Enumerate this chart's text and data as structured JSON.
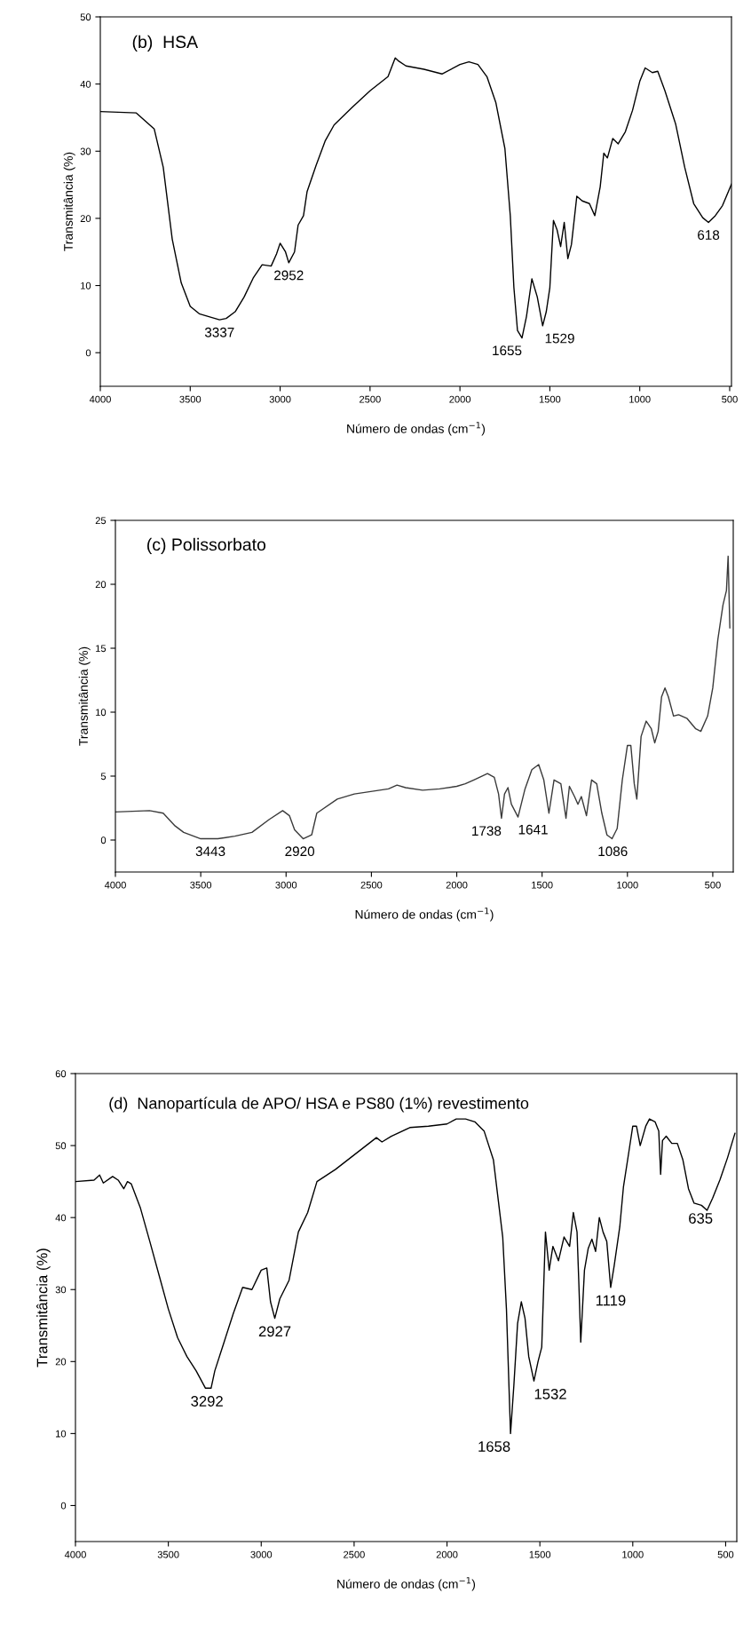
{
  "chart_data": [
    {
      "type": "line",
      "title": "(b)  HSA",
      "xlabel": "Número de ondas (cm$^{−1}$)",
      "ylabel": "Transmitância (%)",
      "xlim": [
        4000,
        490
      ],
      "ylim": [
        -5,
        50
      ],
      "xticks": [
        4000,
        3500,
        3000,
        2500,
        2000,
        1500,
        1000,
        500
      ],
      "yticks": [
        0,
        10,
        20,
        30,
        40,
        50
      ],
      "grid": false,
      "legend": false,
      "series": [
        {
          "color": "#000000",
          "x": [
            4000,
            3800,
            3700,
            3650,
            3600,
            3550,
            3500,
            3450,
            3400,
            3337,
            3300,
            3250,
            3200,
            3150,
            3100,
            3050,
            3020,
            3000,
            2970,
            2952,
            2920,
            2900,
            2870,
            2850,
            2800,
            2750,
            2700,
            2600,
            2500,
            2400,
            2360,
            2340,
            2300,
            2200,
            2100,
            2000,
            1950,
            1900,
            1850,
            1800,
            1750,
            1720,
            1700,
            1680,
            1655,
            1630,
            1600,
            1570,
            1540,
            1520,
            1500,
            1480,
            1460,
            1440,
            1420,
            1400,
            1380,
            1350,
            1320,
            1280,
            1250,
            1220,
            1200,
            1180,
            1150,
            1120,
            1080,
            1040,
            1000,
            970,
            930,
            900,
            860,
            800,
            750,
            700,
            650,
            618,
            580,
            540,
            490
          ],
          "values": [
            35.9,
            35.7,
            33.3,
            27.6,
            16.9,
            10.4,
            6.9,
            5.8,
            5.4,
            4.9,
            5.1,
            6.1,
            8.3,
            11.1,
            13.1,
            12.9,
            14.7,
            16.3,
            15.0,
            13.4,
            15.0,
            19.0,
            20.4,
            24.0,
            27.9,
            31.5,
            33.9,
            36.5,
            39.0,
            41.1,
            43.9,
            43.4,
            42.7,
            42.2,
            41.5,
            42.9,
            43.3,
            42.9,
            41.1,
            37.2,
            30.4,
            20.4,
            9.7,
            3.3,
            2.2,
            5.4,
            11.0,
            8.3,
            4.0,
            6.1,
            9.7,
            19.7,
            18.3,
            15.8,
            19.4,
            14.0,
            16.1,
            23.3,
            22.6,
            22.2,
            20.4,
            24.7,
            29.7,
            29.0,
            31.9,
            31.1,
            32.9,
            36.1,
            40.4,
            42.4,
            41.7,
            41.9,
            39.0,
            34.0,
            27.6,
            22.2,
            20.1,
            19.4,
            20.4,
            21.9,
            25.1
          ]
        }
      ],
      "annotations": [
        {
          "text": "3337",
          "x": 3337,
          "y": 4.9
        },
        {
          "text": "2952",
          "x": 2952,
          "y": 13.4
        },
        {
          "text": "1655",
          "x": 1655,
          "y": 2.2
        },
        {
          "text": "1529",
          "x": 1529,
          "y": 4.0
        },
        {
          "text": "618",
          "x": 618,
          "y": 19.4
        }
      ]
    },
    {
      "type": "line",
      "title": "(c) Polissorbato",
      "xlabel": "Número de ondas (cm$^{−1}$)",
      "ylabel": "Transmitância (%)",
      "xlim": [
        4000,
        380
      ],
      "ylim": [
        -2.5,
        25
      ],
      "xticks": [
        4000,
        3500,
        3000,
        2500,
        2000,
        1500,
        1000,
        500
      ],
      "yticks": [
        0,
        5,
        10,
        15,
        20,
        25
      ],
      "grid": false,
      "legend": false,
      "series": [
        {
          "color": "#3a3a3a",
          "x": [
            4000,
            3800,
            3720,
            3650,
            3600,
            3500,
            3400,
            3300,
            3200,
            3100,
            3020,
            2980,
            2950,
            2900,
            2850,
            2820,
            2700,
            2600,
            2400,
            2350,
            2300,
            2200,
            2100,
            2000,
            1950,
            1900,
            1820,
            1780,
            1755,
            1738,
            1720,
            1700,
            1680,
            1641,
            1600,
            1560,
            1520,
            1490,
            1460,
            1430,
            1390,
            1360,
            1340,
            1310,
            1290,
            1270,
            1240,
            1210,
            1180,
            1150,
            1120,
            1090,
            1060,
            1030,
            1000,
            980,
            960,
            945,
            920,
            890,
            860,
            840,
            820,
            800,
            780,
            760,
            730,
            700,
            650,
            600,
            570,
            530,
            500,
            470,
            440,
            420,
            410,
            400
          ],
          "values": [
            2.2,
            2.3,
            2.1,
            1.1,
            0.6,
            0.1,
            0.1,
            0.3,
            0.6,
            1.6,
            2.3,
            1.9,
            0.8,
            0.1,
            0.4,
            2.1,
            3.2,
            3.6,
            4.0,
            4.3,
            4.1,
            3.9,
            4.0,
            4.2,
            4.4,
            4.7,
            5.2,
            4.9,
            3.6,
            1.7,
            3.6,
            4.1,
            2.8,
            1.8,
            4.0,
            5.5,
            5.9,
            4.7,
            2.1,
            4.7,
            4.4,
            1.7,
            4.2,
            3.4,
            2.8,
            3.4,
            1.9,
            4.7,
            4.4,
            2.1,
            0.4,
            0.1,
            0.9,
            4.7,
            7.4,
            7.4,
            4.4,
            3.2,
            8.1,
            9.3,
            8.7,
            7.6,
            8.5,
            11.2,
            11.9,
            11.2,
            9.7,
            9.8,
            9.5,
            8.7,
            8.5,
            9.7,
            11.9,
            15.7,
            18.4,
            19.5,
            22.2,
            16.6
          ]
        }
      ],
      "annotations": [
        {
          "text": "3443",
          "x": 3443,
          "y": 0.1
        },
        {
          "text": "2920",
          "x": 2920,
          "y": 0.1
        },
        {
          "text": "1738",
          "x": 1738,
          "y": 1.7
        },
        {
          "text": "1641",
          "x": 1641,
          "y": 1.8
        },
        {
          "text": "1086",
          "x": 1086,
          "y": 0.1
        }
      ]
    },
    {
      "type": "line",
      "title": "(d)  Nanopartícula de APO/ HSA e PS80 (1%) revestimento",
      "xlabel": "Número de ondas (cm$^{−1}$)",
      "ylabel": "Transmitância (%)",
      "xlim": [
        4000,
        440
      ],
      "ylim": [
        -5,
        60
      ],
      "xticks": [
        4000,
        3500,
        3000,
        2500,
        2000,
        1500,
        1000,
        500
      ],
      "yticks": [
        0,
        10,
        20,
        30,
        40,
        50,
        60
      ],
      "grid": false,
      "legend": false,
      "series": [
        {
          "color": "#000000",
          "x": [
            4000,
            3900,
            3870,
            3850,
            3800,
            3770,
            3740,
            3720,
            3700,
            3650,
            3600,
            3550,
            3500,
            3450,
            3400,
            3350,
            3300,
            3270,
            3250,
            3200,
            3150,
            3100,
            3050,
            3000,
            2970,
            2950,
            2927,
            2900,
            2850,
            2800,
            2750,
            2700,
            2600,
            2500,
            2400,
            2380,
            2350,
            2300,
            2200,
            2100,
            2000,
            1950,
            1900,
            1850,
            1800,
            1750,
            1700,
            1680,
            1658,
            1640,
            1620,
            1600,
            1580,
            1560,
            1532,
            1510,
            1490,
            1470,
            1450,
            1430,
            1400,
            1370,
            1340,
            1320,
            1300,
            1290,
            1280,
            1260,
            1240,
            1220,
            1200,
            1180,
            1160,
            1140,
            1119,
            1100,
            1070,
            1050,
            1020,
            1000,
            980,
            960,
            930,
            910,
            880,
            860,
            850,
            840,
            820,
            790,
            760,
            730,
            700,
            670,
            630,
            600,
            570,
            530,
            490,
            450
          ],
          "values": [
            45.0,
            45.2,
            45.9,
            44.8,
            45.7,
            45.2,
            44.0,
            45.0,
            44.7,
            41.3,
            36.7,
            32.0,
            27.3,
            23.3,
            20.7,
            18.7,
            16.3,
            16.3,
            18.7,
            22.7,
            26.7,
            30.3,
            30.0,
            32.7,
            33.0,
            28.3,
            26.0,
            28.7,
            31.3,
            38.0,
            40.7,
            45.0,
            46.7,
            48.7,
            50.7,
            51.1,
            50.5,
            51.3,
            52.5,
            52.7,
            53.0,
            53.7,
            53.7,
            53.3,
            52.0,
            48.0,
            37.3,
            27.3,
            10.0,
            16.7,
            25.3,
            28.3,
            26.0,
            20.7,
            17.3,
            20.0,
            22.0,
            38.0,
            32.7,
            36.0,
            34.0,
            37.3,
            36.0,
            40.7,
            38.0,
            30.7,
            22.7,
            32.7,
            35.7,
            37.0,
            35.3,
            40.0,
            38.0,
            36.7,
            30.3,
            33.3,
            38.7,
            44.3,
            49.3,
            52.7,
            52.7,
            50.0,
            52.7,
            53.7,
            53.3,
            52.0,
            46.0,
            50.7,
            51.3,
            50.3,
            50.3,
            48.0,
            44.0,
            42.0,
            41.7,
            41.0,
            42.7,
            45.3,
            48.3,
            51.7
          ]
        }
      ],
      "annotations": [
        {
          "text": "3292",
          "x": 3292,
          "y": 16.3
        },
        {
          "text": "2927",
          "x": 2927,
          "y": 26.0
        },
        {
          "text": "1658",
          "x": 1658,
          "y": 10.0
        },
        {
          "text": "1532",
          "x": 1532,
          "y": 17.3
        },
        {
          "text": "1119",
          "x": 1119,
          "y": 30.3
        },
        {
          "text": "635",
          "x": 635,
          "y": 41.7
        }
      ]
    }
  ]
}
